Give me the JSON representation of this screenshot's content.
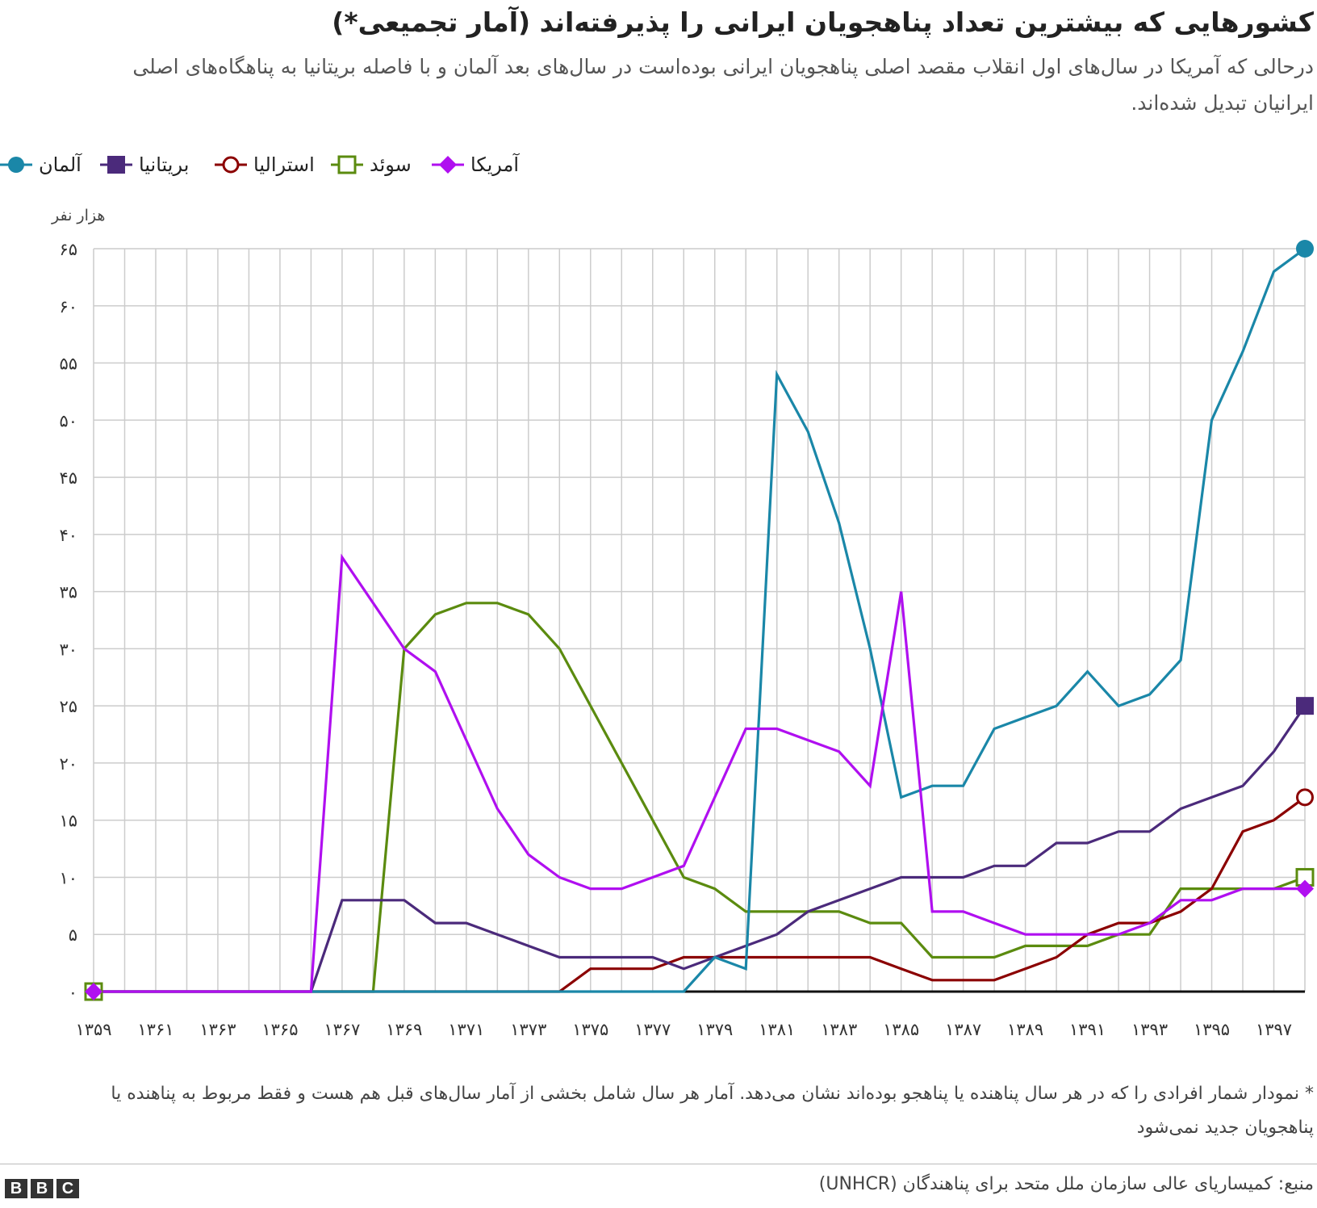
{
  "title": "کشورهایی که بیشترین تعداد پناهجویان ایرانی را پذیرفته‌اند (آمار تجمیعی*)",
  "subtitle": "درحالی که آمریکا در سال‌های اول انقلاب مقصد اصلی پناهجویان ایرانی بوده‌است در سال‌های بعد آلمان و با فاصله بریتانیا به پناهگاه‌های اصلی ایرانیان تبدیل شده‌اند.",
  "footnote": "* نمودار شمار افرادی را که در هر سال پناهنده یا پناهجو بوده‌اند نشان می‌دهد. آمار هر سال شامل بخشی از آمار سال‌های قبل هم هست و فقط مربوط به پناهنده یا پناهجویان جدید نمی‌شود",
  "source": "منبع: کمیساریای عالی سازمان ملل متحد برای پناهندگان (UNHCR)",
  "logo": [
    "B",
    "B",
    "C"
  ],
  "colors": {
    "germany": "#1a87a8",
    "britain": "#4b2a7b",
    "australia": "#8b0000",
    "sweden": "#5b8b0f",
    "usa": "#b00ff0",
    "grid": "#cccccc",
    "baseline": "#111111"
  },
  "chart_data": {
    "type": "line",
    "ylabel": "هزار نفر",
    "ylim": [
      0,
      65
    ],
    "y_ticks": [
      0,
      5,
      10,
      15,
      20,
      25,
      30,
      35,
      40,
      45,
      50,
      55,
      60,
      65
    ],
    "y_tick_labels": [
      "۰",
      "۵",
      "۱۰",
      "۱۵",
      "۲۰",
      "۲۵",
      "۳۰",
      "۳۵",
      "۴۰",
      "۴۵",
      "۵۰",
      "۵۵",
      "۶۰",
      "۶۵"
    ],
    "x": [
      1359,
      1360,
      1361,
      1362,
      1363,
      1364,
      1365,
      1366,
      1367,
      1368,
      1369,
      1370,
      1371,
      1372,
      1373,
      1374,
      1375,
      1376,
      1377,
      1378,
      1379,
      1380,
      1381,
      1382,
      1383,
      1384,
      1385,
      1386,
      1387,
      1388,
      1389,
      1390,
      1391,
      1392,
      1393,
      1394,
      1395,
      1396,
      1397,
      1398
    ],
    "x_tick_values": [
      1359,
      1361,
      1363,
      1365,
      1367,
      1369,
      1371,
      1373,
      1375,
      1377,
      1379,
      1381,
      1383,
      1385,
      1387,
      1389,
      1391,
      1393,
      1395,
      1397
    ],
    "x_tick_labels": [
      "۱۳۵۹",
      "۱۳۶۱",
      "۱۳۶۳",
      "۱۳۶۵",
      "۱۳۶۷",
      "۱۳۶۹",
      "۱۳۷۱",
      "۱۳۷۳",
      "۱۳۷۵",
      "۱۳۷۷",
      "۱۳۷۹",
      "۱۳۸۱",
      "۱۳۸۳",
      "۱۳۸۵",
      "۱۳۸۷",
      "۱۳۸۹",
      "۱۳۹۱",
      "۱۳۹۳",
      "۱۳۹۵",
      "۱۳۹۷"
    ],
    "grid": true,
    "legend_position": "top",
    "series": [
      {
        "key": "germany",
        "name": "آلمان",
        "marker": "filled-circle",
        "values": [
          0,
          0,
          0,
          0,
          0,
          0,
          0,
          0,
          0,
          0,
          0,
          0,
          0,
          0,
          0,
          0,
          0,
          0,
          0,
          0,
          3,
          2,
          54,
          49,
          41,
          30,
          17,
          18,
          18,
          23,
          24,
          25,
          28,
          25,
          26,
          29,
          50,
          56,
          63,
          65
        ]
      },
      {
        "key": "britain",
        "name": "بریتانیا",
        "marker": "filled-square",
        "values": [
          0,
          0,
          0,
          0,
          0,
          0,
          0,
          0,
          8,
          8,
          8,
          6,
          6,
          5,
          4,
          3,
          3,
          3,
          3,
          2,
          3,
          4,
          5,
          7,
          8,
          9,
          10,
          10,
          10,
          11,
          11,
          13,
          13,
          14,
          14,
          16,
          17,
          18,
          21,
          25
        ]
      },
      {
        "key": "australia",
        "name": "استرالیا",
        "marker": "open-circle",
        "values": [
          0,
          0,
          0,
          0,
          0,
          0,
          0,
          0,
          0,
          0,
          0,
          0,
          0,
          0,
          0,
          0,
          2,
          2,
          2,
          3,
          3,
          3,
          3,
          3,
          3,
          3,
          2,
          1,
          1,
          1,
          2,
          3,
          5,
          6,
          6,
          7,
          9,
          14,
          15,
          17
        ]
      },
      {
        "key": "sweden",
        "name": "سوئد",
        "marker": "open-square",
        "values": [
          0,
          0,
          0,
          0,
          0,
          0,
          0,
          0,
          0,
          0,
          30,
          33,
          34,
          34,
          33,
          30,
          25,
          20,
          15,
          10,
          9,
          7,
          7,
          7,
          7,
          6,
          6,
          3,
          3,
          3,
          4,
          4,
          4,
          5,
          5,
          9,
          9,
          9,
          9,
          10
        ]
      },
      {
        "key": "usa",
        "name": "آمریکا",
        "marker": "filled-diamond",
        "values": [
          0,
          0,
          0,
          0,
          0,
          0,
          0,
          0,
          38,
          34,
          30,
          28,
          22,
          16,
          12,
          10,
          9,
          9,
          10,
          11,
          17,
          23,
          23,
          22,
          21,
          18,
          35,
          7,
          7,
          6,
          5,
          5,
          5,
          5,
          6,
          8,
          8,
          9,
          9,
          9
        ]
      }
    ]
  }
}
